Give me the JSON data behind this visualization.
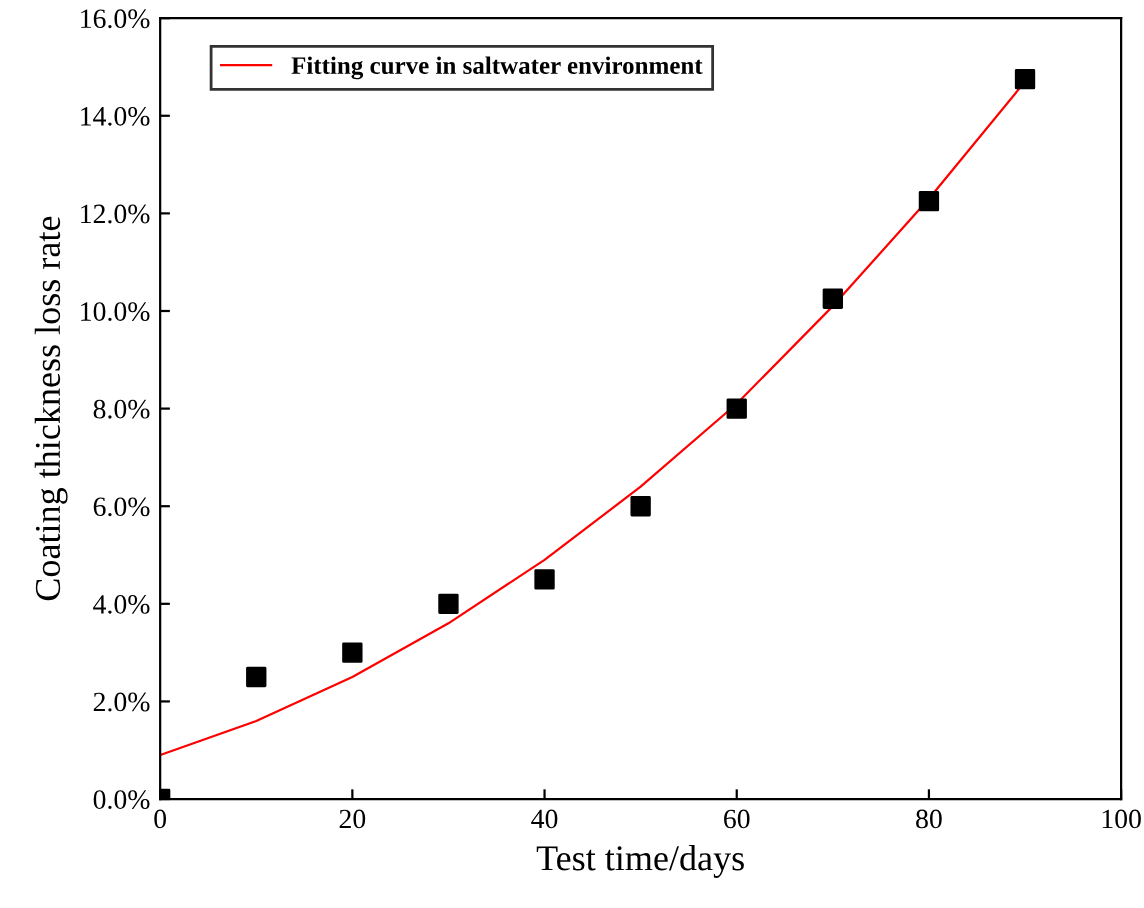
{
  "chart_data": {
    "type": "scatter",
    "xlabel": "Test time/days",
    "ylabel": "Coating thickness loss rate",
    "xlim": [
      0,
      100
    ],
    "xticks": [
      0,
      20,
      40,
      60,
      80,
      100
    ],
    "ylim": [
      0,
      16
    ],
    "yticks": [
      {
        "value": 0,
        "label": "0.0%"
      },
      {
        "value": 2,
        "label": "2.0%"
      },
      {
        "value": 4,
        "label": "4.0%"
      },
      {
        "value": 6,
        "label": "6.0%"
      },
      {
        "value": 8,
        "label": "8.0%"
      },
      {
        "value": 10,
        "label": "10.0%"
      },
      {
        "value": 12,
        "label": "12.0%"
      },
      {
        "value": 14,
        "label": "14.0%"
      },
      {
        "value": 16,
        "label": "16.0%"
      }
    ],
    "legend": "top left",
    "grid": false,
    "series": [
      {
        "color": "#000000",
        "marker": "square",
        "x": [
          0,
          10,
          20,
          30,
          40,
          50,
          60,
          70,
          80,
          90
        ],
        "values": [
          0,
          2.5,
          3.0,
          4.0,
          4.5,
          6.0,
          8.0,
          10.25,
          12.25,
          14.75
        ]
      },
      {
        "type": "line",
        "name": "Fitting curve in saltwater environment",
        "color": "#ff0000",
        "line_style": "solid",
        "x": [
          0,
          10,
          20,
          30,
          40,
          50,
          60,
          70,
          80,
          90
        ],
        "values": [
          0.9,
          1.6,
          2.5,
          3.6,
          4.9,
          6.4,
          8.1,
          10.1,
          12.3,
          14.7
        ]
      }
    ]
  }
}
